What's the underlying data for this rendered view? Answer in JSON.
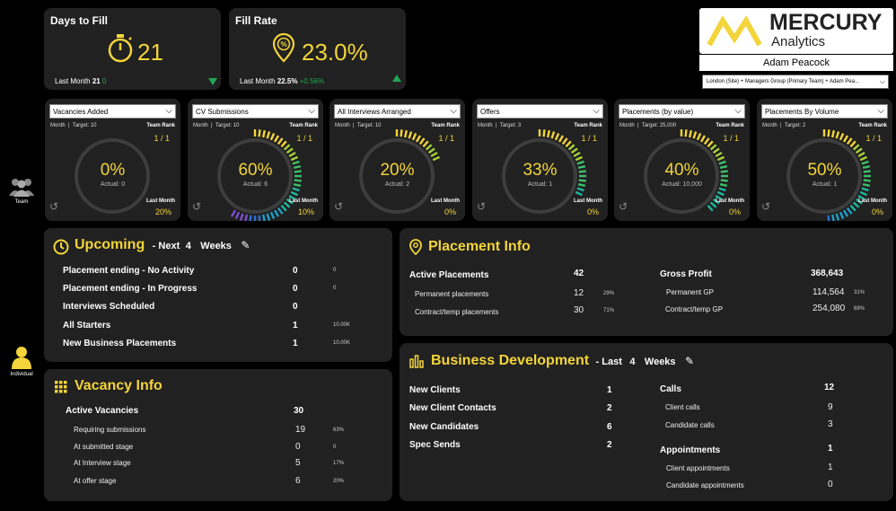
{
  "kpis": [
    {
      "title": "Days to Fill",
      "value": "21",
      "last_label": "Last Month",
      "last_value": "21",
      "change": "0",
      "trend": "down"
    },
    {
      "title": "Fill Rate",
      "value": "23.0%",
      "last_label": "Last Month",
      "last_value": "22.5%",
      "change": "+0.56%",
      "trend": "up"
    }
  ],
  "brand": {
    "name": "MERCURY",
    "sub": "Analytics",
    "accent": "#f3d43a"
  },
  "user": {
    "name": "Adam Peacock",
    "filter": "London (Site) + Managers Group (Primary Team) + Adam Pea..."
  },
  "gauges": [
    {
      "select": "Vacancies Added",
      "month": "Month",
      "target": "Target: 10",
      "rank_label": "Team Rank",
      "rank": "1 / 1",
      "pct": "0%",
      "pct_value": 0,
      "actual": "Actual: 0",
      "last_label": "Last Month",
      "last": "20%"
    },
    {
      "select": "CV Submissions",
      "month": "Month",
      "target": "Target: 10",
      "rank_label": "Team Rank",
      "rank": "1 / 1",
      "pct": "60%",
      "pct_value": 60,
      "actual": "Actual: 6",
      "last_label": "Last Month",
      "last": "10%"
    },
    {
      "select": "All Interviews Arranged",
      "month": "Month",
      "target": "Target: 10",
      "rank_label": "Team Rank",
      "rank": "1 / 1",
      "pct": "20%",
      "pct_value": 20,
      "actual": "Actual: 2",
      "last_label": "Last Month",
      "last": "0%"
    },
    {
      "select": "Offers",
      "month": "Month",
      "target": "Target: 3",
      "rank_label": "Team Rank",
      "rank": "1 / 1",
      "pct": "33%",
      "pct_value": 33,
      "actual": "Actual: 1",
      "last_label": "Last Month",
      "last": "0%"
    },
    {
      "select": "Placements (by value)",
      "month": "Month",
      "target": "Target: 25,000",
      "rank_label": "Team Rank",
      "rank": "1 / 1",
      "pct": "40%",
      "pct_value": 40,
      "actual": "Actual: 10,000",
      "last_label": "Last Month",
      "last": "0%"
    },
    {
      "select": "Placements By Volume",
      "month": "Month",
      "target": "Target: 2",
      "rank_label": "Team Rank",
      "rank": "1 / 1",
      "pct": "50%",
      "pct_value": 50,
      "actual": "Actual: 1",
      "last_label": "Last Month",
      "last": "0%"
    }
  ],
  "side": {
    "team": "Team",
    "individual": "Individual"
  },
  "upcoming": {
    "title": "Upcoming",
    "next": "- Next",
    "num": "4",
    "weeks": "Weeks",
    "rows": [
      {
        "label": "Placement ending - No Activity",
        "value": "0",
        "extra": "0"
      },
      {
        "label": "Placement ending - In Progress",
        "value": "0",
        "extra": "0"
      },
      {
        "label": "Interviews Scheduled",
        "value": "0",
        "extra": ""
      },
      {
        "label": "All Starters",
        "value": "1",
        "extra": "10.00K"
      },
      {
        "label": "New Business Placements",
        "value": "1",
        "extra": "10.00K"
      }
    ]
  },
  "vacancy": {
    "title": "Vacancy Info",
    "main_label": "Active Vacancies",
    "main_value": "30",
    "rows": [
      {
        "label": "Requiring submissions",
        "value": "19",
        "pct": "63%"
      },
      {
        "label": "At submitted stage",
        "value": "0",
        "pct": "0"
      },
      {
        "label": "At Interview stage",
        "value": "5",
        "pct": "17%"
      },
      {
        "label": "At offer stage",
        "value": "6",
        "pct": "20%"
      }
    ]
  },
  "placement": {
    "title": "Placement Info",
    "active_label": "Active Placements",
    "active_value": "42",
    "perm_label": "Permanent placements",
    "perm_value": "12",
    "perm_pct": "29%",
    "contract_label": "Contract/temp placements",
    "contract_value": "30",
    "contract_pct": "71%",
    "gp_label": "Gross Profit",
    "gp_value": "368,643",
    "perm_gp_label": "Permanent GP",
    "perm_gp_value": "114,564",
    "perm_gp_pct": "31%",
    "contract_gp_label": "Contract/temp GP",
    "contract_gp_value": "254,080",
    "contract_gp_pct": "69%"
  },
  "bizdev": {
    "title": "Business Development",
    "last": "- Last",
    "num": "4",
    "weeks": "Weeks",
    "left": [
      {
        "label": "New Clients",
        "value": "1"
      },
      {
        "label": "New Client Contacts",
        "value": "2"
      },
      {
        "label": "New Candidates",
        "value": "6"
      },
      {
        "label": "Spec Sends",
        "value": "2"
      }
    ],
    "calls_label": "Calls",
    "calls_value": "12",
    "client_calls_label": "Client calls",
    "client_calls_value": "9",
    "cand_calls_label": "Candidate calls",
    "cand_calls_value": "3",
    "appt_label": "Appointments",
    "appt_value": "1",
    "client_appt_label": "Client appointments",
    "client_appt_value": "1",
    "cand_appt_label": "Candidate appointments",
    "cand_appt_value": "0"
  }
}
